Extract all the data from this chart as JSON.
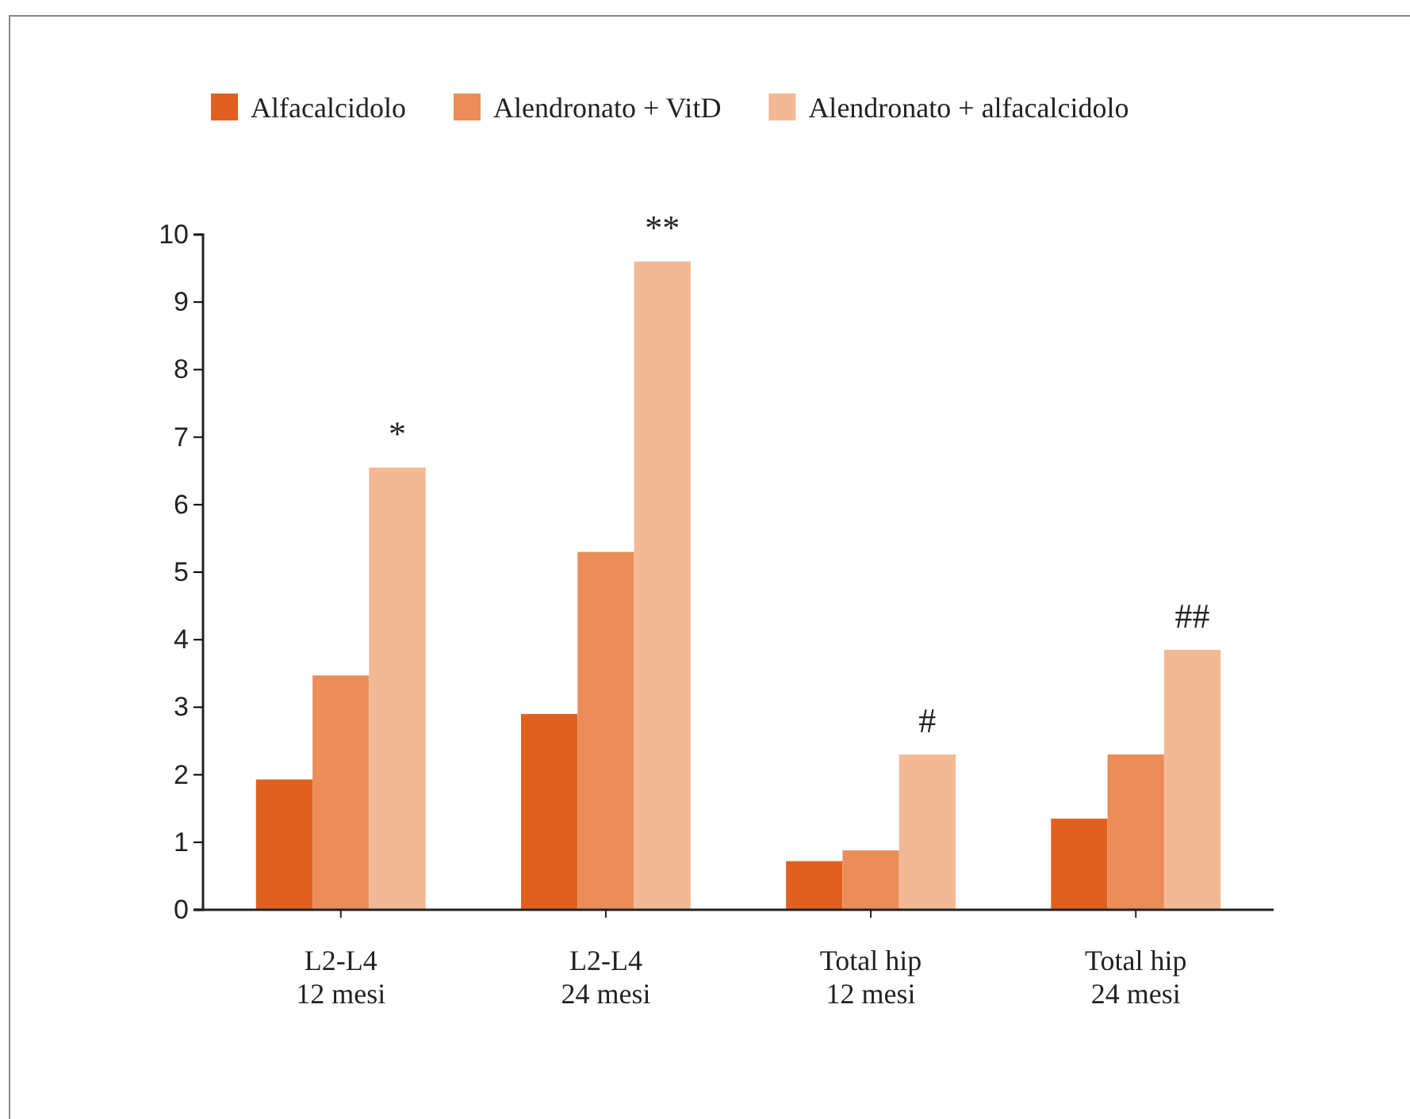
{
  "chart_data": {
    "type": "bar",
    "categories": [
      "L2-L4\n12 mesi",
      "L2-L4\n24 mesi",
      "Total hip\n12 mesi",
      "Total hip\n24 mesi"
    ],
    "series": [
      {
        "name": "Alfacalcidolo",
        "color": "#e0611f",
        "values": [
          1.93,
          2.9,
          0.72,
          1.35
        ]
      },
      {
        "name": "Alendronato + VitD",
        "color": "#ea8d58",
        "values": [
          3.47,
          5.3,
          0.88,
          2.3
        ]
      },
      {
        "name": "Alendronato + alfacalcidolo",
        "color": "#f3b994",
        "values": [
          6.55,
          9.6,
          2.3,
          3.85
        ]
      }
    ],
    "ylim": [
      0,
      10
    ],
    "yticks": [
      0,
      1,
      2,
      3,
      4,
      5,
      6,
      7,
      8,
      9,
      10
    ],
    "grid": false,
    "legend": "top",
    "annotations": [
      "*",
      "**",
      "#",
      "##"
    ]
  }
}
